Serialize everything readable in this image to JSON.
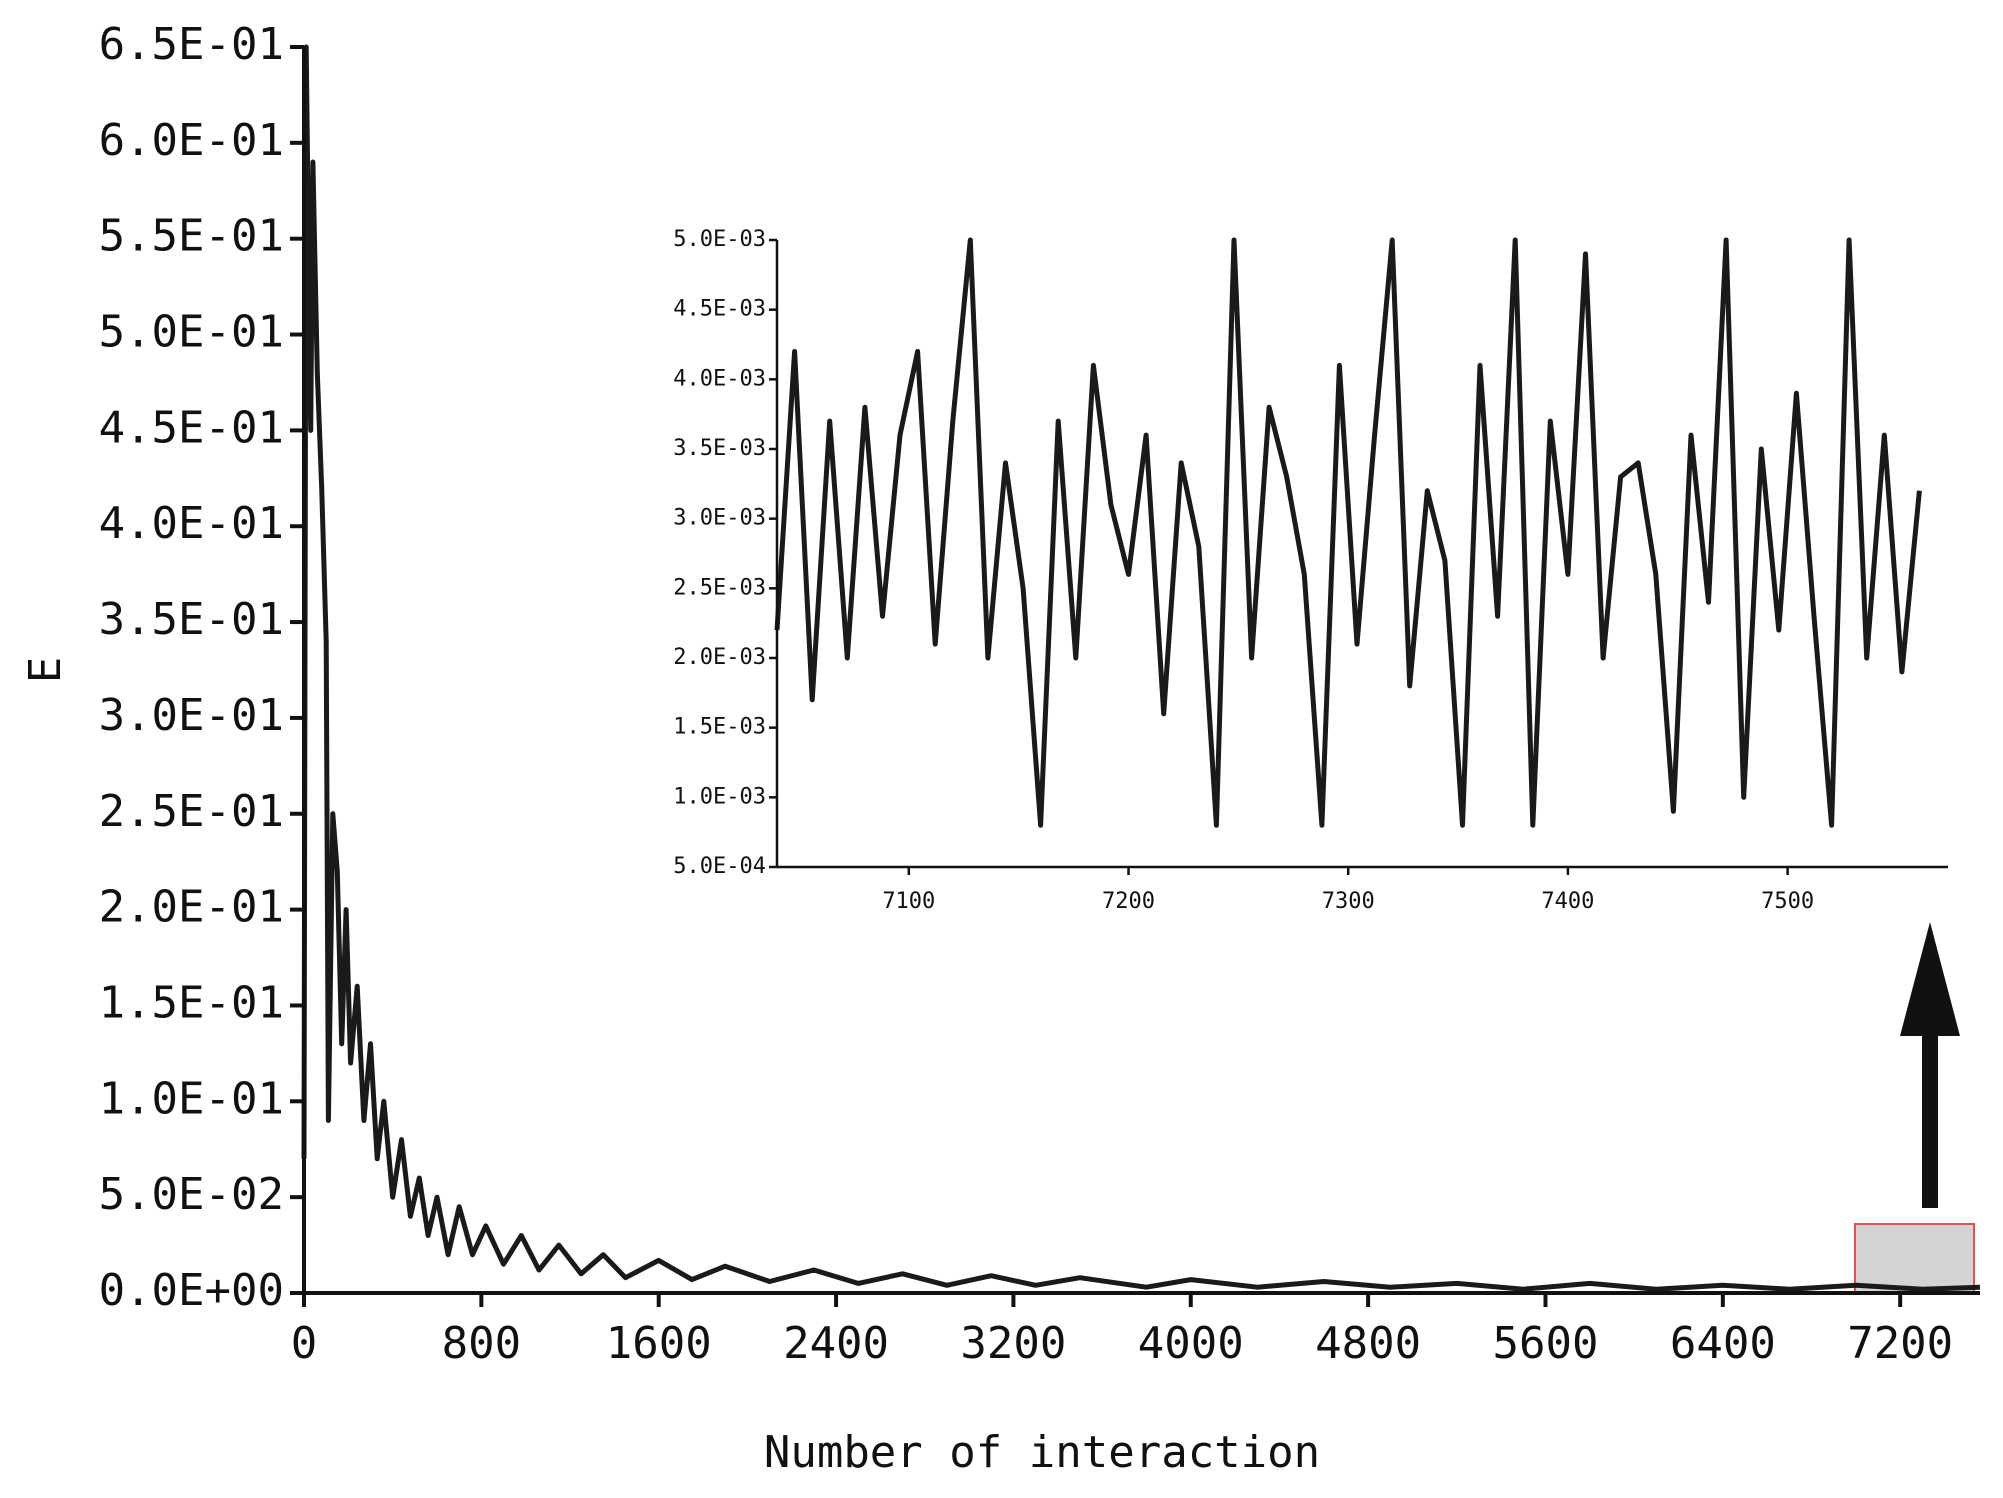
{
  "chart_data": [
    {
      "type": "line",
      "x_label": "Number of interaction",
      "y_label": "E",
      "color": "#1a1a1a",
      "x": [
        0,
        10,
        30,
        40,
        60,
        80,
        100,
        110,
        130,
        150,
        170,
        190,
        210,
        240,
        270,
        300,
        330,
        360,
        400,
        440,
        480,
        520,
        560,
        600,
        650,
        700,
        760,
        820,
        900,
        980,
        1060,
        1150,
        1250,
        1350,
        1450,
        1600,
        1750,
        1900,
        2100,
        2300,
        2500,
        2700,
        2900,
        3100,
        3300,
        3500,
        3800,
        4000,
        4300,
        4600,
        4900,
        5200,
        5500,
        5800,
        6100,
        6400,
        6700,
        7000,
        7300,
        7560
      ],
      "values": [
        0.07,
        0.65,
        0.45,
        0.59,
        0.48,
        0.42,
        0.34,
        0.09,
        0.25,
        0.22,
        0.13,
        0.2,
        0.12,
        0.16,
        0.09,
        0.13,
        0.07,
        0.1,
        0.05,
        0.08,
        0.04,
        0.06,
        0.03,
        0.05,
        0.02,
        0.045,
        0.02,
        0.035,
        0.015,
        0.03,
        0.012,
        0.025,
        0.01,
        0.02,
        0.008,
        0.017,
        0.007,
        0.014,
        0.006,
        0.012,
        0.005,
        0.01,
        0.004,
        0.009,
        0.004,
        0.008,
        0.003,
        0.007,
        0.003,
        0.006,
        0.003,
        0.005,
        0.002,
        0.005,
        0.002,
        0.004,
        0.002,
        0.004,
        0.002,
        0.003
      ],
      "xlim": [
        0,
        7560
      ],
      "ylim": [
        0,
        0.65
      ],
      "xticks": [
        0,
        800,
        1600,
        2400,
        3200,
        4000,
        4800,
        5600,
        6400,
        7200
      ],
      "yticks": [
        {
          "value": 0,
          "label": "0.0E+00"
        },
        {
          "value": 0.05,
          "label": "5.0E-02"
        },
        {
          "value": 0.1,
          "label": "1.0E-01"
        },
        {
          "value": 0.15,
          "label": "1.5E-01"
        },
        {
          "value": 0.2,
          "label": "2.0E-01"
        },
        {
          "value": 0.25,
          "label": "2.5E-01"
        },
        {
          "value": 0.3,
          "label": "3.0E-01"
        },
        {
          "value": 0.35,
          "label": "3.5E-01"
        },
        {
          "value": 0.4,
          "label": "4.0E-01"
        },
        {
          "value": 0.45,
          "label": "4.5E-01"
        },
        {
          "value": 0.5,
          "label": "5.0E-01"
        },
        {
          "value": 0.55,
          "label": "5.5E-01"
        },
        {
          "value": 0.6,
          "label": "6.0E-01"
        },
        {
          "value": 0.65,
          "label": "6.5E-01"
        }
      ]
    },
    {
      "type": "line",
      "color": "#1a1a1a",
      "x": [
        7040,
        7048,
        7056,
        7064,
        7072,
        7080,
        7088,
        7096,
        7104,
        7112,
        7120,
        7128,
        7136,
        7144,
        7152,
        7160,
        7168,
        7176,
        7184,
        7192,
        7200,
        7208,
        7216,
        7224,
        7232,
        7240,
        7248,
        7256,
        7264,
        7272,
        7280,
        7288,
        7296,
        7304,
        7312,
        7320,
        7328,
        7336,
        7344,
        7352,
        7360,
        7368,
        7376,
        7384,
        7392,
        7400,
        7408,
        7416,
        7424,
        7432,
        7440,
        7448,
        7456,
        7464,
        7472,
        7480,
        7488,
        7496,
        7504,
        7512,
        7520,
        7528,
        7536,
        7544,
        7552,
        7560
      ],
      "values": [
        0.0022,
        0.0042,
        0.0017,
        0.0037,
        0.002,
        0.0038,
        0.0023,
        0.0036,
        0.0042,
        0.0021,
        0.0037,
        0.005,
        0.002,
        0.0034,
        0.0025,
        0.0008,
        0.0037,
        0.002,
        0.0041,
        0.0031,
        0.0026,
        0.0036,
        0.0016,
        0.0034,
        0.0028,
        0.0008,
        0.005,
        0.002,
        0.0038,
        0.0033,
        0.0026,
        0.0008,
        0.0041,
        0.0021,
        0.0036,
        0.005,
        0.0018,
        0.0032,
        0.0027,
        0.0008,
        0.0041,
        0.0023,
        0.005,
        0.0008,
        0.0037,
        0.0026,
        0.0049,
        0.002,
        0.0033,
        0.0034,
        0.0026,
        0.0009,
        0.0036,
        0.0024,
        0.005,
        0.001,
        0.0035,
        0.0022,
        0.0039,
        0.0023,
        0.0008,
        0.005,
        0.002,
        0.0036,
        0.0019,
        0.0032
      ],
      "xlim": [
        7040,
        7573
      ],
      "ylim": [
        0.0005,
        0.005
      ],
      "xticks": [
        7100,
        7200,
        7300,
        7400,
        7500
      ],
      "yticks": [
        {
          "value": 0.0005,
          "label": "5.0E-04"
        },
        {
          "value": 0.001,
          "label": "1.0E-03"
        },
        {
          "value": 0.0015,
          "label": "1.5E-03"
        },
        {
          "value": 0.002,
          "label": "2.0E-03"
        },
        {
          "value": 0.0025,
          "label": "2.5E-03"
        },
        {
          "value": 0.003,
          "label": "3.0E-03"
        },
        {
          "value": 0.0035,
          "label": "3.5E-03"
        },
        {
          "value": 0.004,
          "label": "4.0E-03"
        },
        {
          "value": 0.0045,
          "label": "4.5E-03"
        },
        {
          "value": 0.005,
          "label": "5.0E-03"
        }
      ]
    }
  ]
}
